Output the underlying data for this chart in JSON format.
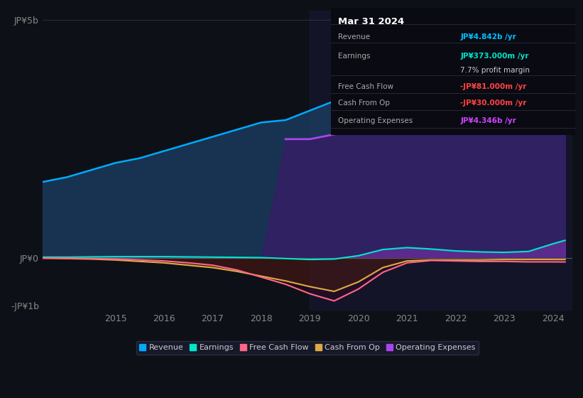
{
  "bg_color": "#0d1117",
  "plot_bg_color": "#0d1117",
  "title": "Mar 31 2024",
  "table_data": {
    "Revenue": {
      "value": "JP¥4.842b /yr",
      "color": "#00bfff"
    },
    "Earnings": {
      "value": "JP¥373.000m /yr",
      "color": "#00e5cc"
    },
    "profit_margin": {
      "value": "7.7% profit margin",
      "color": "#cccccc"
    },
    "Free Cash Flow": {
      "value": "-JP¥81.000m /yr",
      "color": "#ff4444"
    },
    "Cash From Op": {
      "value": "-JP¥30.000m /yr",
      "color": "#ff4444"
    },
    "Operating Expenses": {
      "value": "JP¥4.346b /yr",
      "color": "#cc44ff"
    }
  },
  "years": [
    2013.5,
    2014,
    2014.5,
    2015,
    2015.5,
    2016,
    2016.5,
    2017,
    2017.5,
    2018,
    2018.5,
    2019,
    2019.5,
    2020,
    2020.5,
    2021,
    2021.5,
    2022,
    2022.5,
    2023,
    2023.5,
    2024,
    2024.25
  ],
  "revenue": [
    1.6,
    1.7,
    1.85,
    2.0,
    2.1,
    2.25,
    2.4,
    2.55,
    2.7,
    2.85,
    2.9,
    3.1,
    3.3,
    3.5,
    3.6,
    3.7,
    3.8,
    4.0,
    4.1,
    4.2,
    4.4,
    4.7,
    4.842
  ],
  "earnings": [
    0.02,
    0.02,
    0.025,
    0.03,
    0.03,
    0.03,
    0.025,
    0.02,
    0.015,
    0.01,
    -0.01,
    -0.03,
    -0.02,
    0.05,
    0.18,
    0.22,
    0.19,
    0.15,
    0.13,
    0.12,
    0.14,
    0.3,
    0.373
  ],
  "free_cash_flow": [
    0.0,
    0.0,
    -0.01,
    -0.02,
    -0.04,
    -0.06,
    -0.1,
    -0.15,
    -0.25,
    -0.4,
    -0.55,
    -0.75,
    -0.9,
    -0.65,
    -0.3,
    -0.1,
    -0.05,
    -0.06,
    -0.07,
    -0.07,
    -0.08,
    -0.08,
    -0.081
  ],
  "cash_from_op": [
    0.0,
    -0.01,
    -0.02,
    -0.04,
    -0.07,
    -0.1,
    -0.15,
    -0.2,
    -0.28,
    -0.38,
    -0.48,
    -0.6,
    -0.7,
    -0.5,
    -0.2,
    -0.06,
    -0.04,
    -0.04,
    -0.04,
    -0.03,
    -0.03,
    -0.03,
    -0.03
  ],
  "operating_expenses": [
    0.0,
    0.0,
    0.0,
    0.0,
    0.0,
    0.0,
    0.0,
    0.0,
    0.0,
    0.0,
    2.5,
    2.5,
    2.6,
    2.7,
    2.9,
    3.1,
    3.3,
    3.5,
    3.6,
    3.7,
    3.85,
    4.2,
    4.346
  ],
  "revenue_color": "#00aaff",
  "revenue_fill_color": "#1a3a5c",
  "earnings_color": "#00e5cc",
  "free_cash_flow_color": "#ff6688",
  "cash_from_op_color": "#ddaa44",
  "operating_expenses_color": "#aa44ee",
  "operating_expenses_fill_color": "#3a1a6a",
  "ylim": [
    -1.1,
    5.2
  ],
  "xlim": [
    2013.5,
    2024.4
  ],
  "yticks": [
    -1,
    0,
    5
  ],
  "ytick_labels": [
    "-JP¥1b",
    "JP¥0",
    "JP¥5b"
  ],
  "xticks": [
    2015,
    2016,
    2017,
    2018,
    2019,
    2020,
    2021,
    2022,
    2023,
    2024
  ],
  "legend_items": [
    {
      "label": "Revenue",
      "color": "#00aaff"
    },
    {
      "label": "Earnings",
      "color": "#00e5cc"
    },
    {
      "label": "Free Cash Flow",
      "color": "#ff6688"
    },
    {
      "label": "Cash From Op",
      "color": "#ddaa44"
    },
    {
      "label": "Operating Expenses",
      "color": "#aa44ee"
    }
  ],
  "highlight_x_start": 2019.0,
  "highlight_x_end": 2024.4
}
